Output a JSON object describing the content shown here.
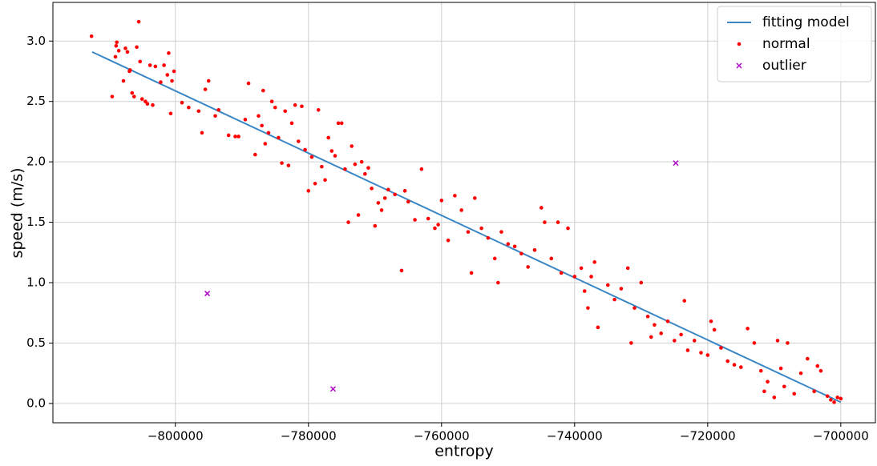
{
  "chart_data": {
    "type": "scatter",
    "xlabel": "entropy",
    "ylabel": "speed (m/s)",
    "grid": true,
    "legend": "upper right",
    "xlim": [
      -818400,
      -694800
    ],
    "ylim": [
      -0.16,
      3.32
    ],
    "xticks": [
      {
        "value": -800000,
        "label": "−800000"
      },
      {
        "value": -780000,
        "label": "−780000"
      },
      {
        "value": -760000,
        "label": "−760000"
      },
      {
        "value": -740000,
        "label": "−740000"
      },
      {
        "value": -720000,
        "label": "−720000"
      },
      {
        "value": -700000,
        "label": "−700000"
      }
    ],
    "yticks": [
      {
        "value": 0,
        "label": "0.0"
      },
      {
        "value": 0.5,
        "label": "0.5"
      },
      {
        "value": 1,
        "label": "1.0"
      },
      {
        "value": 1.5,
        "label": "1.5"
      },
      {
        "value": 2,
        "label": "2.0"
      },
      {
        "value": 2.5,
        "label": "2.5"
      },
      {
        "value": 3,
        "label": "3.0"
      }
    ],
    "series": [
      {
        "name": "fitting model",
        "type": "line",
        "color": "#3a86c4",
        "x": [
          -812500,
          -700000
        ],
        "values": [
          2.91,
          0.01
        ]
      },
      {
        "name": "normal",
        "type": "scatter",
        "marker": "o",
        "color": "#ff0000",
        "x": [
          -812600,
          -809500,
          -809000,
          -808900,
          -808800,
          -808500,
          -807800,
          -807500,
          -807200,
          -806900,
          -806800,
          -806500,
          -806200,
          -805800,
          -805500,
          -805300,
          -805000,
          -804500,
          -804200,
          -803800,
          -803400,
          -803000,
          -802200,
          -801700,
          -801200,
          -801000,
          -800700,
          -800500,
          -800200,
          -799000,
          -798000,
          -796500,
          -796000,
          -795500,
          -795000,
          -794000,
          -793500,
          -792000,
          -791000,
          -790500,
          -789500,
          -789000,
          -788000,
          -787500,
          -787000,
          -786800,
          -786500,
          -786000,
          -785500,
          -785000,
          -784500,
          -784000,
          -783500,
          -783000,
          -782500,
          -782000,
          -781500,
          -781000,
          -780500,
          -780000,
          -779500,
          -779000,
          -778500,
          -778000,
          -777500,
          -777000,
          -776500,
          -776000,
          -775500,
          -775000,
          -774500,
          -774000,
          -773500,
          -773000,
          -772500,
          -772000,
          -771500,
          -771000,
          -770500,
          -770000,
          -769500,
          -769000,
          -768500,
          -768000,
          -767000,
          -766000,
          -765500,
          -765000,
          -764000,
          -763000,
          -762000,
          -761000,
          -760500,
          -760000,
          -759000,
          -758000,
          -757000,
          -756000,
          -755500,
          -755000,
          -754000,
          -753000,
          -752000,
          -751500,
          -751000,
          -750000,
          -749000,
          -748000,
          -747000,
          -746000,
          -745000,
          -744500,
          -743500,
          -742500,
          -742000,
          -741000,
          -740000,
          -739000,
          -738500,
          -738000,
          -737500,
          -737000,
          -736500,
          -735000,
          -734000,
          -733000,
          -732000,
          -731500,
          -731000,
          -730000,
          -729000,
          -728500,
          -728000,
          -727000,
          -726000,
          -725000,
          -724000,
          -723500,
          -723000,
          -722000,
          -721000,
          -720000,
          -719500,
          -719000,
          -718000,
          -717000,
          -716000,
          -715000,
          -714000,
          -713000,
          -712000,
          -711500,
          -711000,
          -710000,
          -709500,
          -709000,
          -708500,
          -708000,
          -707000,
          -706000,
          -705000,
          -704000,
          -703500,
          -703000,
          -702000,
          -701500,
          -701000,
          -700500,
          -700000
        ],
        "values": [
          3.04,
          2.54,
          2.87,
          2.96,
          2.99,
          2.92,
          2.67,
          2.94,
          2.91,
          2.75,
          2.76,
          2.57,
          2.54,
          2.95,
          3.16,
          2.83,
          2.52,
          2.5,
          2.48,
          2.8,
          2.47,
          2.79,
          2.66,
          2.8,
          2.72,
          2.9,
          2.4,
          2.67,
          2.75,
          2.49,
          2.45,
          2.42,
          2.24,
          2.6,
          2.67,
          2.38,
          2.43,
          2.22,
          2.21,
          2.21,
          2.35,
          2.65,
          2.06,
          2.38,
          2.3,
          2.59,
          2.15,
          2.24,
          2.5,
          2.45,
          2.2,
          1.99,
          2.42,
          1.97,
          2.32,
          2.47,
          2.17,
          2.46,
          2.1,
          1.76,
          2.04,
          1.82,
          2.43,
          1.96,
          1.85,
          2.2,
          2.09,
          2.05,
          2.32,
          2.32,
          1.94,
          1.5,
          2.13,
          1.98,
          1.56,
          2.0,
          1.9,
          1.95,
          1.78,
          1.47,
          1.66,
          1.6,
          1.7,
          1.77,
          1.73,
          1.1,
          1.76,
          1.67,
          1.52,
          1.94,
          1.53,
          1.45,
          1.48,
          1.68,
          1.35,
          1.72,
          1.6,
          1.42,
          1.08,
          1.7,
          1.45,
          1.37,
          1.2,
          1.0,
          1.42,
          1.32,
          1.3,
          1.24,
          1.13,
          1.27,
          1.62,
          1.5,
          1.2,
          1.5,
          1.08,
          1.45,
          1.05,
          1.12,
          0.93,
          0.79,
          1.05,
          1.17,
          0.63,
          0.98,
          0.86,
          0.95,
          1.12,
          0.5,
          0.79,
          1.0,
          0.72,
          0.55,
          0.65,
          0.58,
          0.68,
          0.52,
          0.57,
          0.85,
          0.44,
          0.52,
          0.42,
          0.4,
          0.68,
          0.61,
          0.46,
          0.35,
          0.32,
          0.3,
          0.62,
          0.5,
          0.27,
          0.1,
          0.18,
          0.05,
          0.52,
          0.29,
          0.14,
          0.5,
          0.08,
          0.25,
          0.37,
          0.1,
          0.31,
          0.27,
          0.06,
          0.03,
          0.01,
          0.05,
          0.04
        ]
      },
      {
        "name": "outlier",
        "type": "scatter",
        "marker": "x",
        "color": "#b000c8",
        "x": [
          -795200,
          -776300,
          -724800
        ],
        "values": [
          0.91,
          0.12,
          1.99
        ]
      }
    ]
  }
}
